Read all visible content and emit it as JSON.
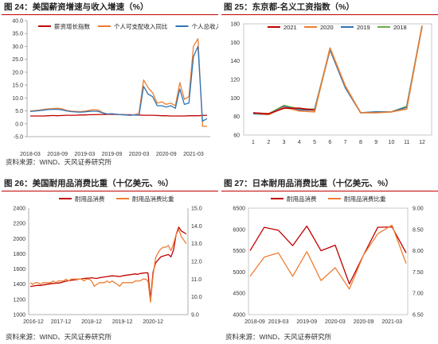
{
  "colors": {
    "accent_red": "#c00000",
    "brand_dark_red": "#c00000",
    "orange": "#ed7d31",
    "blue": "#2e75b6",
    "green": "#70ad47"
  },
  "panels": [
    {
      "title": "图 24：美国薪资增速与收入增速（%）",
      "source": "资料来源：WIND、天风证券研究所"
    },
    {
      "title": "图 25：东京都-名义工资指数（%）",
      "source": ""
    },
    {
      "title": "图 26：美国耐用品消费比重（十亿美元、%）",
      "source": "资料来源：WIND、天风证券研究所"
    },
    {
      "title": "图 27：日本耐用品消费比重（十亿美元、%）",
      "source": "资料来源：WIND、天风证券研究所"
    }
  ],
  "chart_data": [
    {
      "type": "line",
      "title": "美国薪资增速与收入增速（%）",
      "x_ticks": [
        "2018-03",
        "2018-09",
        "2019-03",
        "2019-09",
        "2020-03",
        "2020-09",
        "2021-03"
      ],
      "ylim": [
        -5,
        40
      ],
      "y_ticks": [
        "-5.0",
        "0.0",
        "5.0",
        "10.0",
        "15.0",
        "20.0",
        "25.0",
        "30.0",
        "35.0",
        "40.0"
      ],
      "legend_position": "top",
      "series": [
        {
          "name": "薪资增长指数",
          "color": "#c00000",
          "values": [
            3.0,
            3.0,
            3.0,
            3.0,
            3.1,
            3.2,
            3.1,
            3.2,
            3.3,
            3.3,
            3.3,
            3.4,
            3.4,
            3.5,
            3.5,
            3.6,
            3.6,
            3.6,
            3.7,
            3.6,
            3.6,
            3.5,
            3.5,
            3.4,
            3.4,
            3.3,
            3.3,
            3.3,
            3.2,
            3.1,
            3.1,
            3.0,
            3.0,
            3.0,
            3.0,
            3.1,
            3.1,
            3.1,
            3.2,
            3.3
          ]
        },
        {
          "name": "个人可支配收入同比",
          "color": "#ed7d31",
          "values": [
            5.0,
            5.1,
            5.3,
            5.6,
            5.8,
            5.9,
            6.0,
            5.8,
            5.2,
            4.9,
            4.8,
            4.7,
            4.9,
            5.2,
            5.5,
            5.3,
            4.3,
            3.7,
            3.9,
            3.7,
            3.5,
            3.4,
            3.3,
            3.5,
            4.2,
            17.0,
            14.0,
            12.0,
            8.0,
            8.5,
            7.5,
            8.0,
            7.0,
            16.0,
            9.5,
            10.5,
            30.0,
            33.0,
            -1.0,
            -1.0
          ]
        },
        {
          "name": "个人总收入同比",
          "color": "#2e75b6",
          "values": [
            4.8,
            4.9,
            5.1,
            5.3,
            5.5,
            5.6,
            5.6,
            5.4,
            5.0,
            4.7,
            4.6,
            4.5,
            4.6,
            4.8,
            4.9,
            4.8,
            4.2,
            3.8,
            3.9,
            3.7,
            3.5,
            3.4,
            3.3,
            3.4,
            3.3,
            14.5,
            11.5,
            10.5,
            7.0,
            7.0,
            6.5,
            7.0,
            6.0,
            13.5,
            7.5,
            8.0,
            26.0,
            30.0,
            1.0,
            2.0
          ]
        }
      ]
    },
    {
      "type": "line",
      "title": "东京都-名义工资指数（%）",
      "categories": [
        "1",
        "2",
        "3",
        "4",
        "5",
        "6",
        "7",
        "8",
        "9",
        "10",
        "11",
        "12"
      ],
      "ylim": [
        60,
        180
      ],
      "y_ticks": [
        "60",
        "80",
        "100",
        "120",
        "140",
        "160",
        "180"
      ],
      "legend_position": "top",
      "series": [
        {
          "name": "2021",
          "color": "#c00000",
          "values": [
            84,
            83,
            89,
            89,
            87,
            null,
            null,
            null,
            null,
            null,
            null,
            null
          ]
        },
        {
          "name": "2020",
          "color": "#ed7d31",
          "values": [
            84,
            82,
            90,
            86,
            85,
            154,
            113,
            84,
            84,
            85,
            88,
            178
          ]
        },
        {
          "name": "2019",
          "color": "#2e75b6",
          "values": [
            83,
            82,
            91,
            87,
            87,
            152,
            111,
            84,
            85,
            85,
            90,
            177
          ]
        },
        {
          "name": "2018",
          "color": "#70ad47",
          "values": [
            84,
            83,
            92,
            88,
            88,
            153,
            112,
            84,
            85,
            85,
            91,
            178
          ]
        }
      ]
    },
    {
      "type": "line",
      "title": "美国耐用品消费比重（十亿美元、%）",
      "x_ticks": [
        "2016-12",
        "2017-12",
        "2018-12",
        "2019-12",
        "2020-12"
      ],
      "ylim_left": [
        1000,
        2400
      ],
      "y_ticks_left": [
        "1000",
        "1200",
        "1400",
        "1600",
        "1800",
        "2000",
        "2200",
        "2400"
      ],
      "ylim_right": [
        9.0,
        15.0
      ],
      "y_ticks_right": [
        "9.0",
        "10.0",
        "11.0",
        "12.0",
        "13.0",
        "14.0",
        "15.0"
      ],
      "legend_position": "top",
      "series": [
        {
          "name": "耐用品消费",
          "color": "#c00000",
          "axis": "left",
          "values": [
            1370,
            1375,
            1380,
            1385,
            1382,
            1390,
            1395,
            1400,
            1405,
            1410,
            1412,
            1415,
            1420,
            1430,
            1440,
            1445,
            1450,
            1455,
            1460,
            1465,
            1470,
            1475,
            1478,
            1480,
            1485,
            1480,
            1475,
            1485,
            1490,
            1495,
            1500,
            1505,
            1510,
            1508,
            1505,
            1500,
            1510,
            1515,
            1520,
            1525,
            1530,
            1535,
            1530,
            1540,
            1545,
            1550,
            1548,
            1200,
            1560,
            1680,
            1720,
            1760,
            1770,
            1780,
            1790,
            1760,
            1850,
            2050,
            2150,
            2100,
            2080,
            2060
          ]
        },
        {
          "name": "耐用品消费比重",
          "color": "#ed7d31",
          "axis": "right",
          "values": [
            10.8,
            10.7,
            10.8,
            10.8,
            10.7,
            10.8,
            10.8,
            10.8,
            10.8,
            10.9,
            10.8,
            10.9,
            10.9,
            10.9,
            11.0,
            10.9,
            11.0,
            11.0,
            11.0,
            11.0,
            11.0,
            10.9,
            11.0,
            11.0,
            10.9,
            10.6,
            10.7,
            10.8,
            10.8,
            10.8,
            10.9,
            10.8,
            10.9,
            10.8,
            10.7,
            10.6,
            10.8,
            10.8,
            10.8,
            10.8,
            10.8,
            10.9,
            10.9,
            10.9,
            11.0,
            11.0,
            10.9,
            9.7,
            11.2,
            12.2,
            12.5,
            12.7,
            12.8,
            12.8,
            12.9,
            12.6,
            13.0,
            13.5,
            13.8,
            13.4,
            13.2,
            13.0
          ]
        }
      ]
    },
    {
      "type": "line",
      "title": "日本耐用品消费比重（十亿美元、%）",
      "x_ticks": [
        "2018-09",
        "2019-03",
        "2019-09",
        "2020-03",
        "2020-09",
        "2021-03"
      ],
      "ylim_left": [
        4000,
        6500
      ],
      "y_ticks_left": [
        "4000",
        "4500",
        "5000",
        "5500",
        "6000",
        "6500"
      ],
      "ylim_right": [
        6.5,
        9.0
      ],
      "y_ticks_right": [
        "6.50",
        "7.00",
        "7.50",
        "8.00",
        "8.50",
        "9.00"
      ],
      "legend_position": "top",
      "series": [
        {
          "name": "耐用品消费",
          "color": "#c00000",
          "axis": "left",
          "x": [
            0,
            1,
            2,
            3,
            4,
            5,
            6,
            7,
            8,
            9,
            10,
            11
          ],
          "values": [
            5500,
            6050,
            5980,
            5620,
            6080,
            5500,
            5630,
            4720,
            5400,
            6050,
            6060,
            5450
          ]
        },
        {
          "name": "耐用品消费比重",
          "color": "#ed7d31",
          "axis": "right",
          "x": [
            0,
            1,
            2,
            3,
            4,
            5,
            6,
            7,
            8,
            9,
            10,
            11
          ],
          "values": [
            7.4,
            7.85,
            7.95,
            7.4,
            7.98,
            7.3,
            7.6,
            7.1,
            7.9,
            8.4,
            8.6,
            7.7
          ]
        }
      ]
    }
  ]
}
